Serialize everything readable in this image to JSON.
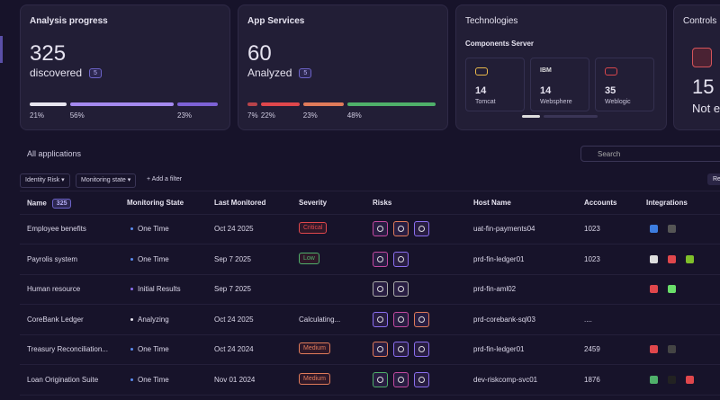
{
  "cards": {
    "analysis": {
      "title": "Analysis progress",
      "count": "325",
      "label": "discovered",
      "badge": "5",
      "segments": [
        {
          "value": 21,
          "label": "21%",
          "color": "#e8e6f0"
        },
        {
          "value": 56,
          "label": "56%",
          "color": "#a58af0"
        },
        {
          "value": 23,
          "label": "23%",
          "color": "#7d62d6"
        }
      ]
    },
    "services": {
      "title": "App Services",
      "count": "60",
      "label": "Analyzed",
      "badge": "5",
      "segments": [
        {
          "value": 7,
          "label": "7%",
          "color": "#b8434a"
        },
        {
          "value": 22,
          "label": "22%",
          "color": "#e0474c"
        },
        {
          "value": 23,
          "label": "23%",
          "color": "#e07b5a"
        },
        {
          "value": 48,
          "label": "48%",
          "color": "#4fb06a"
        }
      ]
    },
    "technologies": {
      "title": "Technologies",
      "subtitle": "Components Server",
      "items": [
        {
          "logo": "",
          "count": "14",
          "name": "Tomcat"
        },
        {
          "logo": "IBM",
          "count": "14",
          "name": "Websphere"
        },
        {
          "logo": "",
          "count": "35",
          "name": "Weblogic"
        }
      ]
    },
    "controls": {
      "title": "Controls",
      "count": "15",
      "label": "Not en"
    }
  },
  "table": {
    "title": "All applications",
    "search": "Search",
    "filters": [
      "Identity Risk",
      "Monitoring state"
    ],
    "add_filter": "+ Add a filter",
    "cut_button": "Re",
    "name_badge": "325",
    "columns": [
      "Name",
      "Monitoring State",
      "Last Monitored",
      "Severity",
      "Risks",
      "Host Name",
      "Accounts",
      "Integrations"
    ],
    "rows": [
      {
        "name": "Employee benefits",
        "state": "One Time",
        "last": "Oct 24 2025",
        "severity": "Critical",
        "host": "uat-fin-payments04",
        "accounts": "1023"
      },
      {
        "name": "Payrolis system",
        "state": "One Time",
        "last": "Sep 7 2025",
        "severity": "Low",
        "host": "prd-fin-ledger01",
        "accounts": "1023"
      },
      {
        "name": "Human resource",
        "state": "Initial Results",
        "last": "Sep 7 2025",
        "host": "prd-fin-aml02"
      },
      {
        "name": "CoreBank  Ledger",
        "state": "Analyzing",
        "last": "Oct 24 2025",
        "severity": "Calculating...",
        "host": "prd-corebank-sql03",
        "accounts": "...."
      },
      {
        "name": "Treasury Reconciliation...",
        "state": "One Time",
        "last": "Oct 24 2024",
        "severity": "Medium",
        "host": "prd-fin-ledger01",
        "accounts": "2459"
      },
      {
        "name": "Loan Origination Suite",
        "state": "One Time",
        "last": "Nov 01 2024",
        "severity": "Medium",
        "host": "dev-riskcomp-svc01",
        "accounts": "1876"
      }
    ]
  }
}
